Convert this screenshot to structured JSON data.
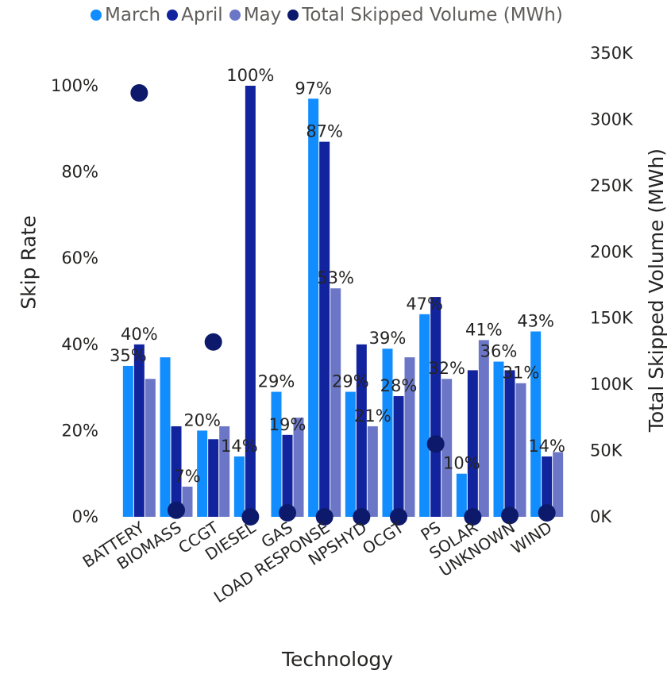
{
  "chart_data": {
    "type": "bar",
    "xlabel": "Technology",
    "ylabel": "Skip Rate",
    "y2label": "Total Skipped Volume (MWh)",
    "categories": [
      "BATTERY",
      "BIOMASS",
      "CCGT",
      "DIESEL",
      "GAS",
      "LOAD RESPONSE",
      "NPSHYD",
      "OCGT",
      "PS",
      "SOLAR",
      "UNKNOWN",
      "WIND"
    ],
    "ylim": [
      0,
      100
    ],
    "y_ticks": [
      "0%",
      "20%",
      "40%",
      "60%",
      "80%",
      "100%"
    ],
    "y2lim": [
      0,
      350000
    ],
    "y2_ticks": [
      "0K",
      "50K",
      "100K",
      "150K",
      "200K",
      "250K",
      "300K",
      "350K"
    ],
    "legend_position": "top",
    "series": [
      {
        "name": "March",
        "color": "#118dff",
        "values": [
          35,
          37,
          20,
          14,
          29,
          97,
          29,
          39,
          47,
          10,
          36,
          43
        ],
        "labels": [
          "35%",
          "",
          "20%",
          "14%",
          "29%",
          "97%",
          "29%",
          "39%",
          "47%",
          "10%",
          "36%",
          "43%"
        ]
      },
      {
        "name": "April",
        "color": "#12239e",
        "values": [
          40,
          21,
          18,
          100,
          19,
          87,
          40,
          28,
          51,
          34,
          34,
          14
        ],
        "labels": [
          "40%",
          "",
          "",
          "100%",
          "19%",
          "87%",
          "",
          "28%",
          "",
          "",
          "",
          "14%"
        ]
      },
      {
        "name": "May",
        "color": "#6b77c6",
        "values": [
          32,
          7,
          21,
          0,
          23,
          53,
          21,
          37,
          32,
          41,
          31,
          15
        ],
        "labels": [
          "",
          "7%",
          "",
          "",
          "",
          "53%",
          "21%",
          "",
          "32%",
          "41%",
          "31%",
          ""
        ]
      }
    ],
    "line_series": {
      "name": "Total Skipped Volume (MWh)",
      "color": "#0d1a6b",
      "values": [
        320000,
        5000,
        132000,
        0,
        3000,
        0,
        0,
        0,
        55000,
        0,
        1000,
        3000
      ]
    }
  }
}
